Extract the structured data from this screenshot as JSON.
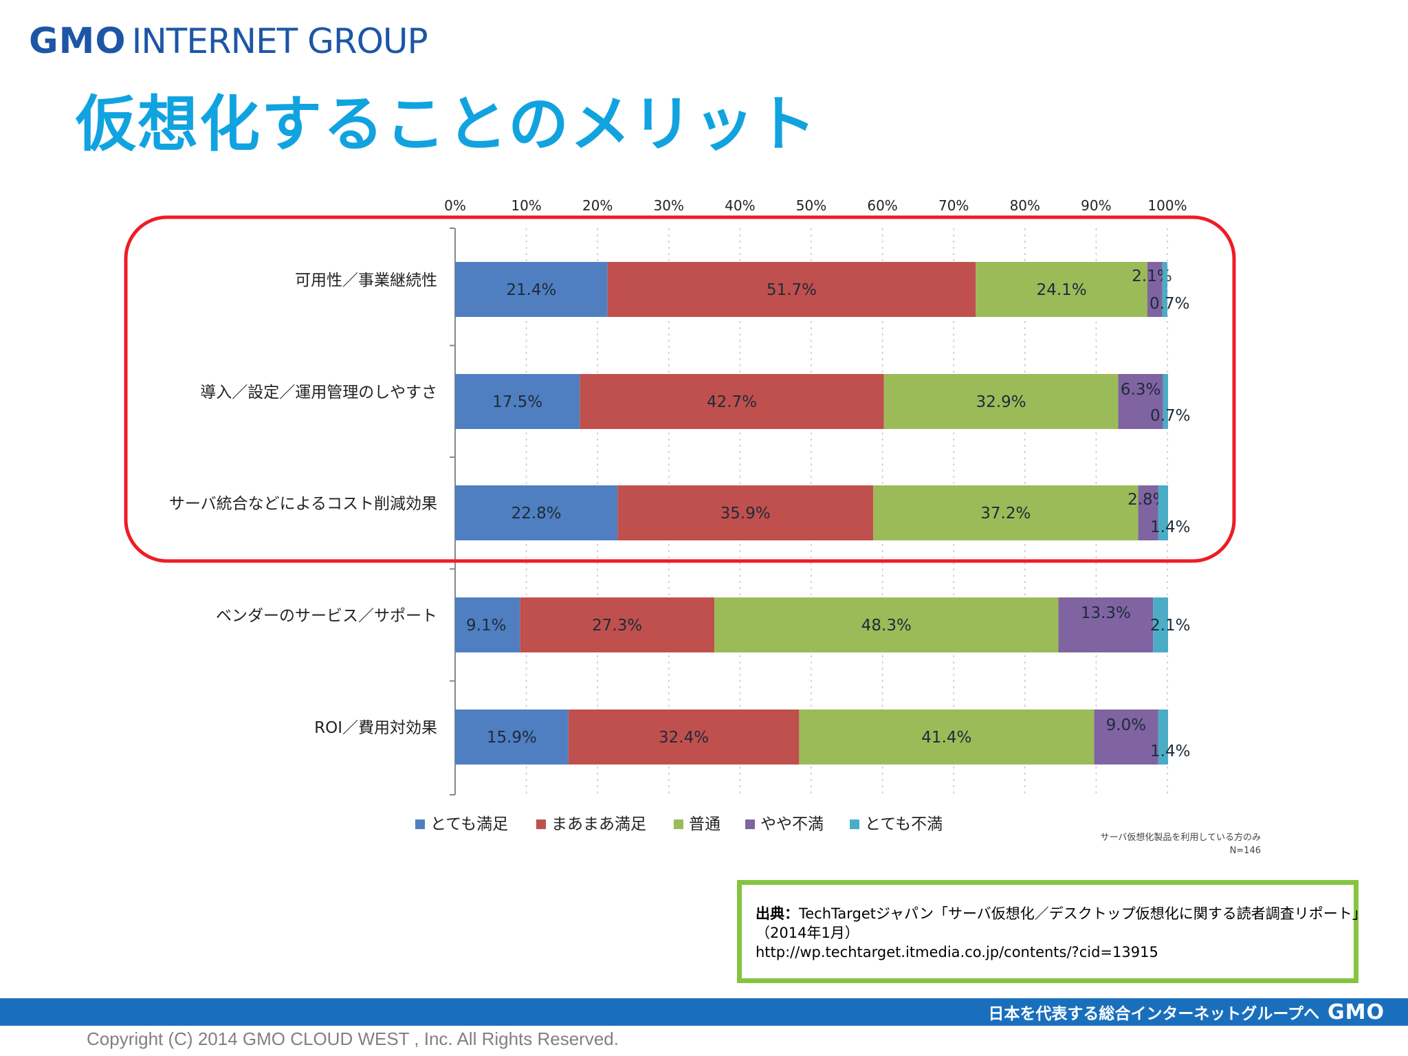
{
  "header": {
    "logo_gmo": "GMO",
    "logo_rest": "INTERNET GROUP",
    "title": "仮想化することのメリット"
  },
  "chart_data": {
    "type": "bar",
    "orientation": "horizontal",
    "stacked": true,
    "categories": [
      "可用性／事業継続性",
      "導入／設定／運用管理のしやすさ",
      "サーバ統合などによるコスト削減効果",
      "ベンダーのサービス／サポート",
      "ROI／費用対効果"
    ],
    "series": [
      {
        "name": "とても満足",
        "color": "#4f7fc0",
        "values": [
          21.4,
          17.5,
          22.8,
          9.1,
          15.9
        ]
      },
      {
        "name": "まあまあ満足",
        "color": "#c0504d",
        "values": [
          51.7,
          42.7,
          35.9,
          27.3,
          32.4
        ]
      },
      {
        "name": "普通",
        "color": "#9bbb59",
        "values": [
          24.1,
          32.9,
          37.2,
          48.3,
          41.4
        ]
      },
      {
        "name": "やや不満",
        "color": "#8064a2",
        "values": [
          2.1,
          6.3,
          2.8,
          13.3,
          9.0
        ]
      },
      {
        "name": "とても不満",
        "color": "#4bacc6",
        "values": [
          0.7,
          0.7,
          1.4,
          2.1,
          1.4
        ]
      }
    ],
    "value_labels": [
      [
        "21.4%",
        "51.7%",
        "24.1%",
        "2.1%",
        "0.7%"
      ],
      [
        "17.5%",
        "42.7%",
        "32.9%",
        "6.3%",
        "0.7%"
      ],
      [
        "22.8%",
        "35.9%",
        "37.2%",
        "2.8%",
        "1.4%"
      ],
      [
        "9.1%",
        "27.3%",
        "48.3%",
        "13.3%",
        "2.1%"
      ],
      [
        "15.9%",
        "32.4%",
        "41.4%",
        "9.0%",
        "1.4%"
      ]
    ],
    "x_ticks": [
      "0%",
      "10%",
      "20%",
      "30%",
      "40%",
      "50%",
      "60%",
      "70%",
      "80%",
      "90%",
      "100%"
    ],
    "xlim": [
      0,
      100
    ],
    "grid": true,
    "legend_position": "bottom",
    "highlight_categories": [
      0,
      1,
      2
    ],
    "highlight_color": "#ee1c25",
    "note_line1": "サーバ仮想化製品を利用している方のみ",
    "note_line2": "N=146"
  },
  "source": {
    "lead": "出典：",
    "line1": "TechTargetジャパン「サーバ仮想化／デスクトップ仮想化に関する読者調査リポート」",
    "line2": "（2014年1月）",
    "line3": "http://wp.techtarget.itmedia.co.jp/contents/?cid=13915"
  },
  "footer": {
    "tagline": "日本を代表する総合インターネットグループへ",
    "gmo": "GMO",
    "copyright": "Copyright (C) 2014 GMO CLOUD WEST , Inc. All Rights Reserved."
  },
  "colors": {
    "title": "#10a3e0",
    "logo": "#1d56a6",
    "footer_bar": "#1a6fbd",
    "source_border": "#86c440"
  }
}
